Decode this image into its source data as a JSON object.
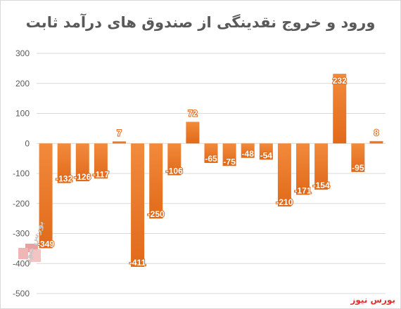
{
  "chart_data": {
    "type": "bar",
    "title": "ورود و خروج  نقدینگی از صندوق های درآمد ثابت",
    "values": [
      -349,
      -132,
      -126,
      -117,
      7,
      -411,
      -250,
      -106,
      72,
      -65,
      -75,
      -48,
      -54,
      -210,
      -171,
      -154,
      232,
      -95,
      8
    ],
    "ylim": [
      -500,
      300
    ],
    "yticks": [
      300,
      200,
      100,
      0,
      -100,
      -200,
      -300,
      -400,
      -500
    ],
    "grid": true,
    "legend": "none",
    "bar_color": "#ed7d31"
  },
  "watermark": "بورس نیوز",
  "logo_text": "بورس نیوز",
  "colors": {
    "bar_top": "#f28a3c",
    "bar_bottom": "#e06a1a",
    "grid": "#d9d9d9",
    "watermark": "#e03030"
  }
}
